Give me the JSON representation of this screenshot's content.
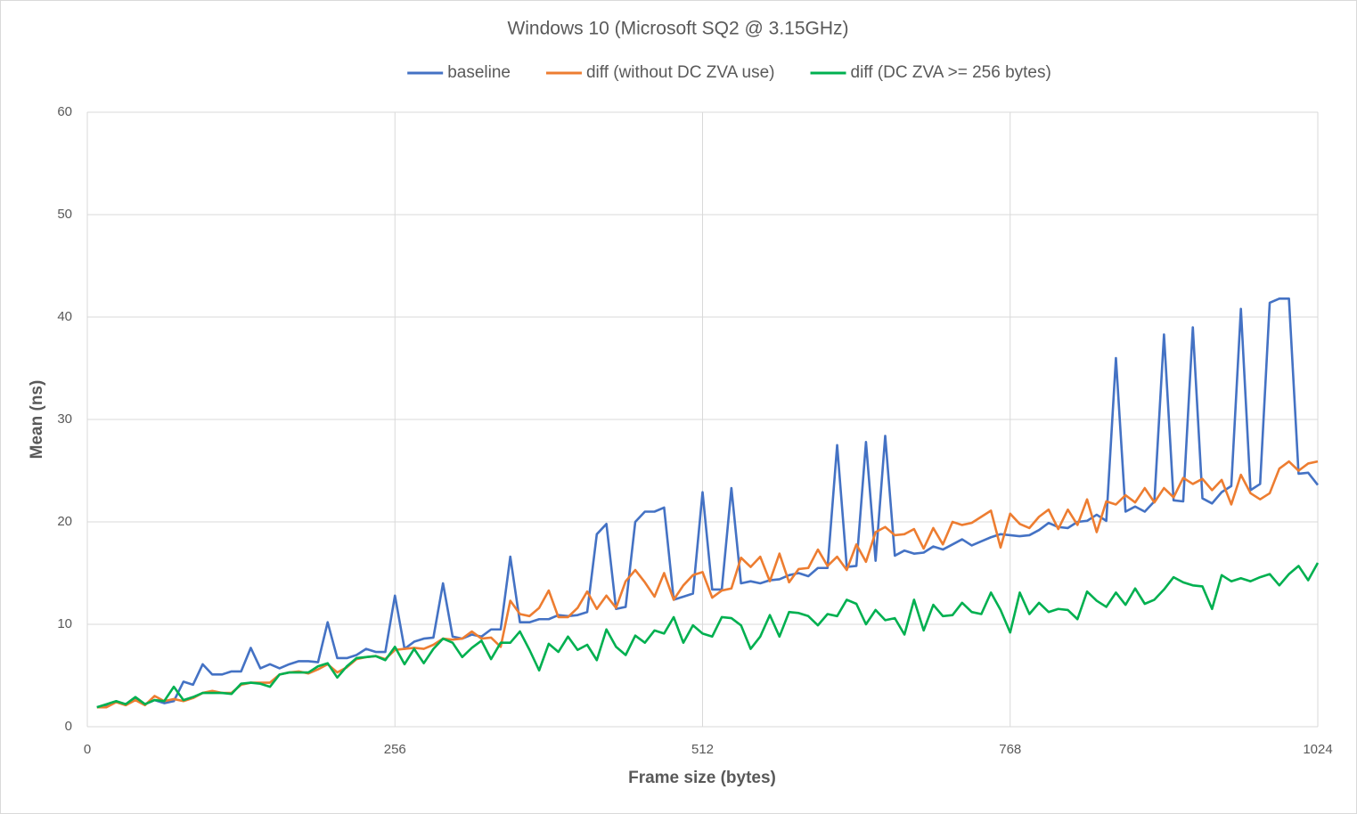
{
  "chart_data": {
    "type": "line",
    "title": "Windows 10 (Microsoft SQ2 @ 3.15GHz)",
    "x_label": "Frame size (bytes)",
    "y_label": "Mean (ns)",
    "xlim": [
      0,
      1024
    ],
    "xticks": [
      0,
      256,
      512,
      768,
      1024
    ],
    "ylim": [
      0,
      60
    ],
    "yticks": [
      0,
      10,
      20,
      30,
      40,
      50,
      60
    ],
    "grid": true,
    "legend": "top",
    "x": [
      8,
      16,
      24,
      32,
      40,
      48,
      56,
      64,
      72,
      80,
      88,
      96,
      104,
      112,
      120,
      128,
      136,
      144,
      152,
      160,
      168,
      176,
      184,
      192,
      200,
      208,
      216,
      224,
      232,
      240,
      248,
      256,
      264,
      272,
      280,
      288,
      296,
      304,
      312,
      320,
      328,
      336,
      344,
      352,
      360,
      368,
      376,
      384,
      392,
      400,
      408,
      416,
      424,
      432,
      440,
      448,
      456,
      464,
      472,
      480,
      488,
      496,
      504,
      512,
      520,
      528,
      536,
      544,
      552,
      560,
      568,
      576,
      584,
      592,
      600,
      608,
      616,
      624,
      632,
      640,
      648,
      656,
      664,
      672,
      680,
      688,
      696,
      704,
      712,
      720,
      728,
      736,
      744,
      752,
      760,
      768,
      776,
      784,
      792,
      800,
      808,
      816,
      824,
      832,
      840,
      848,
      856,
      864,
      872,
      880,
      888,
      896,
      904,
      912,
      920,
      928,
      936,
      944,
      952,
      960,
      968,
      976,
      984,
      992,
      1000,
      1008,
      1016,
      1024
    ],
    "series": [
      {
        "name": "baseline",
        "color": "#4472c4",
        "values": [
          1.9,
          2.1,
          2.4,
          2.2,
          2.7,
          2.2,
          2.6,
          2.3,
          2.5,
          4.4,
          4.1,
          6.1,
          5.1,
          5.1,
          5.4,
          5.4,
          7.7,
          5.7,
          6.1,
          5.7,
          6.1,
          6.4,
          6.4,
          6.3,
          10.2,
          6.7,
          6.7,
          7.0,
          7.6,
          7.3,
          7.3,
          12.8,
          7.6,
          8.3,
          8.6,
          8.7,
          14.0,
          8.8,
          8.6,
          9.0,
          8.8,
          9.5,
          9.5,
          16.6,
          10.2,
          10.2,
          10.5,
          10.5,
          10.9,
          10.8,
          10.9,
          11.2,
          18.8,
          19.8,
          11.5,
          11.7,
          20.0,
          21.0,
          21.0,
          21.4,
          12.4,
          12.7,
          13.0,
          22.9,
          13.4,
          13.4,
          23.3,
          14.0,
          14.2,
          14.0,
          14.3,
          14.4,
          14.8,
          15.0,
          14.7,
          15.5,
          15.5,
          27.5,
          15.6,
          15.7,
          27.8,
          16.2,
          28.4,
          16.7,
          17.2,
          16.9,
          17.0,
          17.6,
          17.3,
          17.8,
          18.3,
          17.7,
          18.1,
          18.5,
          18.8,
          18.7,
          18.6,
          18.7,
          19.2,
          19.9,
          19.5,
          19.4,
          20.0,
          20.1,
          20.7,
          20.1,
          36.0,
          21.0,
          21.5,
          21.0,
          22.0,
          38.3,
          22.1,
          22.0,
          39.0,
          22.3,
          21.8,
          22.9,
          23.5,
          40.8,
          23.1,
          23.7,
          41.4,
          41.8,
          41.8,
          24.7,
          24.8,
          23.6
        ]
      },
      {
        "name": "diff (without DC ZVA use)",
        "color": "#ed7d31",
        "values": [
          1.9,
          1.9,
          2.4,
          2.1,
          2.6,
          2.1,
          3.0,
          2.5,
          2.7,
          2.5,
          2.8,
          3.3,
          3.5,
          3.3,
          3.3,
          4.1,
          4.3,
          4.3,
          4.3,
          5.1,
          5.3,
          5.4,
          5.2,
          5.6,
          6.1,
          5.3,
          5.8,
          6.6,
          6.8,
          6.9,
          6.6,
          7.5,
          7.6,
          7.7,
          7.6,
          8.0,
          8.6,
          8.5,
          8.6,
          9.3,
          8.6,
          8.7,
          7.8,
          12.3,
          11.0,
          10.8,
          11.6,
          13.3,
          10.7,
          10.7,
          11.6,
          13.2,
          11.5,
          12.8,
          11.6,
          14.2,
          15.3,
          14.1,
          12.7,
          15.0,
          12.4,
          13.8,
          14.8,
          15.1,
          12.6,
          13.3,
          13.5,
          16.5,
          15.6,
          16.6,
          14.2,
          16.9,
          14.1,
          15.4,
          15.5,
          17.3,
          15.7,
          16.6,
          15.3,
          17.8,
          16.1,
          19.0,
          19.5,
          18.7,
          18.8,
          19.3,
          17.4,
          19.4,
          17.8,
          20.0,
          19.7,
          19.9,
          20.5,
          21.1,
          17.5,
          20.8,
          19.8,
          19.4,
          20.5,
          21.2,
          19.3,
          21.2,
          19.7,
          22.2,
          19.0,
          22.0,
          21.7,
          22.6,
          21.9,
          23.3,
          21.9,
          23.3,
          22.4,
          24.3,
          23.7,
          24.2,
          23.1,
          24.1,
          21.7,
          24.6,
          22.8,
          22.2,
          22.8,
          25.2,
          25.9,
          25.0,
          25.7,
          25.9
        ]
      },
      {
        "name": "diff (DC ZVA >= 256 bytes)",
        "color": "#00b050",
        "values": [
          1.9,
          2.2,
          2.5,
          2.2,
          2.9,
          2.2,
          2.6,
          2.5,
          3.9,
          2.6,
          2.9,
          3.3,
          3.3,
          3.3,
          3.2,
          4.2,
          4.3,
          4.2,
          3.9,
          5.1,
          5.3,
          5.3,
          5.3,
          5.9,
          6.2,
          4.8,
          5.9,
          6.7,
          6.8,
          6.9,
          6.5,
          7.8,
          6.1,
          7.6,
          6.2,
          7.6,
          8.6,
          8.2,
          6.8,
          7.7,
          8.4,
          6.6,
          8.2,
          8.2,
          9.3,
          7.5,
          5.5,
          8.1,
          7.3,
          8.8,
          7.5,
          8.0,
          6.5,
          9.5,
          7.8,
          7.0,
          8.9,
          8.2,
          9.4,
          9.1,
          10.7,
          8.2,
          9.9,
          9.1,
          8.8,
          10.7,
          10.6,
          9.9,
          7.6,
          8.8,
          10.9,
          8.8,
          11.2,
          11.1,
          10.8,
          9.9,
          11.0,
          10.8,
          12.4,
          12.0,
          10.0,
          11.4,
          10.4,
          10.6,
          9.0,
          12.4,
          9.4,
          11.9,
          10.8,
          10.9,
          12.1,
          11.2,
          11.0,
          13.1,
          11.4,
          9.2,
          13.1,
          11.0,
          12.1,
          11.2,
          11.5,
          11.4,
          10.5,
          13.2,
          12.3,
          11.7,
          13.1,
          11.9,
          13.5,
          12.0,
          12.4,
          13.4,
          14.6,
          14.1,
          13.8,
          13.7,
          11.5,
          14.8,
          14.2,
          14.5,
          14.2,
          14.6,
          14.9,
          13.8,
          14.9,
          15.7,
          14.3,
          16.0
        ]
      }
    ]
  }
}
